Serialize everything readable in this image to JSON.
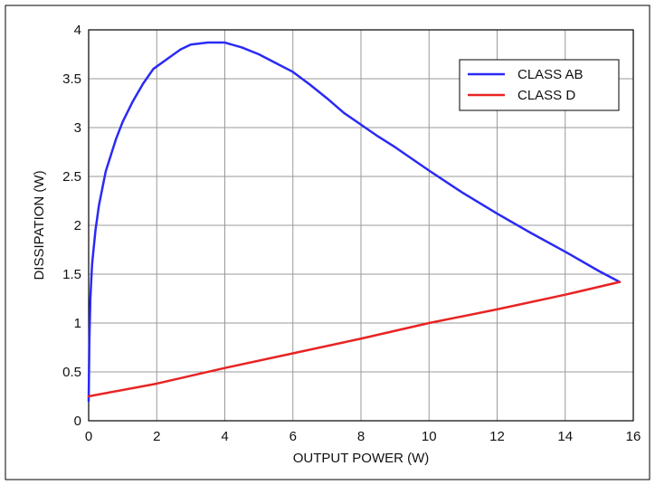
{
  "chart_data": {
    "type": "line",
    "title": "",
    "xlabel": "OUTPUT POWER (W)",
    "ylabel": "DISSIPATION (W)",
    "xlim": [
      0,
      16
    ],
    "ylim": [
      0,
      4
    ],
    "x_ticks": [
      0,
      2,
      4,
      6,
      8,
      10,
      12,
      14,
      16
    ],
    "y_ticks": [
      0,
      0.5,
      1,
      1.5,
      2,
      2.5,
      3,
      3.5,
      4
    ],
    "x_tick_labels": [
      "0",
      "2",
      "4",
      "6",
      "8",
      "10",
      "12",
      "14",
      "16"
    ],
    "y_tick_labels": [
      "0",
      "0.5",
      "1",
      "1.5",
      "2",
      "2.5",
      "3",
      "3.5",
      "4"
    ],
    "grid": true,
    "legend_position": "top-right",
    "series": [
      {
        "name": "CLASS AB",
        "color": "#2a2af5",
        "points": [
          [
            0,
            0.2
          ],
          [
            0.02,
            0.8
          ],
          [
            0.05,
            1.25
          ],
          [
            0.1,
            1.6
          ],
          [
            0.2,
            1.95
          ],
          [
            0.3,
            2.2
          ],
          [
            0.5,
            2.55
          ],
          [
            0.8,
            2.88
          ],
          [
            1.0,
            3.06
          ],
          [
            1.3,
            3.27
          ],
          [
            1.6,
            3.45
          ],
          [
            1.9,
            3.6
          ],
          [
            2.3,
            3.7
          ],
          [
            2.7,
            3.8
          ],
          [
            3.0,
            3.85
          ],
          [
            3.5,
            3.87
          ],
          [
            4.0,
            3.87
          ],
          [
            4.5,
            3.82
          ],
          [
            5.0,
            3.75
          ],
          [
            5.5,
            3.66
          ],
          [
            6.0,
            3.57
          ],
          [
            6.5,
            3.44
          ],
          [
            7.0,
            3.3
          ],
          [
            7.5,
            3.15
          ],
          [
            8.0,
            3.03
          ],
          [
            8.5,
            2.91
          ],
          [
            9.0,
            2.8
          ],
          [
            10.0,
            2.56
          ],
          [
            11.0,
            2.33
          ],
          [
            12.0,
            2.12
          ],
          [
            13.0,
            1.92
          ],
          [
            14.0,
            1.73
          ],
          [
            15.0,
            1.53
          ],
          [
            15.6,
            1.42
          ]
        ]
      },
      {
        "name": "CLASS D",
        "color": "#e82323",
        "points": [
          [
            0,
            0.25
          ],
          [
            2,
            0.38
          ],
          [
            4,
            0.54
          ],
          [
            6,
            0.69
          ],
          [
            8,
            0.84
          ],
          [
            10,
            1.0
          ],
          [
            12,
            1.14
          ],
          [
            14,
            1.29
          ],
          [
            15.6,
            1.42
          ]
        ]
      }
    ]
  }
}
